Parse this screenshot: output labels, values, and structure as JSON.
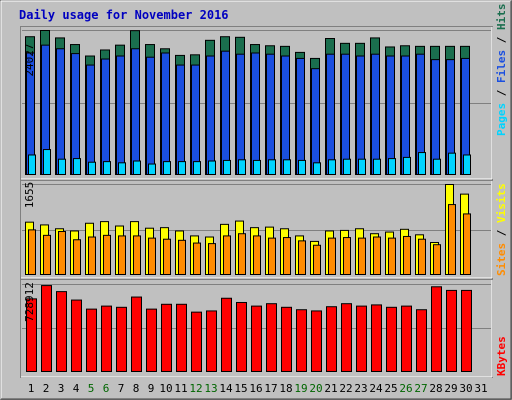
{
  "title": "Daily usage for November 2016",
  "colors": {
    "background": "#c0c0c0",
    "title": "#0000c0",
    "hits": "#1a6e4e",
    "files": "#1a4fe0",
    "pages": "#00d4ff",
    "visits": "#ffff00",
    "sites": "#ff8c00",
    "kbytes": "#ff0000",
    "weekend_label": "#006600"
  },
  "chart_data": [
    {
      "type": "bar",
      "panel": "hits-files-pages",
      "max_label": "24027",
      "ylim": [
        0,
        24027
      ],
      "legend": [
        {
          "label": "Pages",
          "color": "#00d4ff"
        },
        {
          "label": "Files",
          "color": "#1a4fe0"
        },
        {
          "label": "Hits",
          "color": "#1a6e4e"
        }
      ],
      "legend_separator": "/",
      "categories": [
        "1",
        "2",
        "3",
        "4",
        "5",
        "6",
        "7",
        "8",
        "9",
        "10",
        "11",
        "12",
        "13",
        "14",
        "15",
        "16",
        "17",
        "18",
        "19",
        "20",
        "21",
        "22",
        "23",
        "24",
        "25",
        "26",
        "27",
        "28",
        "29",
        "30",
        "31"
      ],
      "series": [
        {
          "name": "Hits",
          "values": [
            23000,
            24027,
            22800,
            21700,
            19800,
            20800,
            21600,
            24000,
            21700,
            21000,
            19900,
            20000,
            22400,
            23000,
            22900,
            21700,
            21500,
            21400,
            20400,
            19400,
            22700,
            21900,
            21900,
            22800,
            21300,
            21500,
            21400,
            21400,
            21400,
            21400,
            0
          ]
        },
        {
          "name": "Files",
          "values": [
            20300,
            21600,
            21000,
            20200,
            18300,
            19300,
            19800,
            21000,
            19600,
            20300,
            18300,
            18300,
            19800,
            20600,
            20100,
            20300,
            20100,
            19800,
            19400,
            17700,
            20100,
            20100,
            19800,
            20100,
            19800,
            19800,
            20100,
            19200,
            19200,
            19400,
            0
          ]
        },
        {
          "name": "Pages",
          "values": [
            3400,
            4300,
            2700,
            2800,
            2200,
            2300,
            2100,
            2400,
            1900,
            2300,
            2300,
            2300,
            2400,
            2500,
            2600,
            2500,
            2600,
            2600,
            2500,
            2100,
            2600,
            2700,
            2700,
            2700,
            2800,
            3000,
            3800,
            2700,
            3700,
            3400,
            0
          ]
        }
      ]
    },
    {
      "type": "bar",
      "panel": "visits-sites",
      "max_label": "1655",
      "ylim": [
        0,
        1655
      ],
      "legend": [
        {
          "label": "Sites",
          "color": "#ff8c00"
        },
        {
          "label": "Visits",
          "color": "#ffff00"
        }
      ],
      "legend_separator": "/",
      "categories": [
        "1",
        "2",
        "3",
        "4",
        "5",
        "6",
        "7",
        "8",
        "9",
        "10",
        "11",
        "12",
        "13",
        "14",
        "15",
        "16",
        "17",
        "18",
        "19",
        "20",
        "21",
        "22",
        "23",
        "24",
        "25",
        "26",
        "27",
        "28",
        "29",
        "30",
        "31"
      ],
      "series": [
        {
          "name": "Visits",
          "values": [
            970,
            920,
            850,
            810,
            950,
            980,
            900,
            980,
            860,
            870,
            810,
            720,
            700,
            930,
            990,
            870,
            880,
            850,
            720,
            620,
            810,
            820,
            850,
            760,
            790,
            840,
            740,
            600,
            1655,
            1480,
            0
          ]
        },
        {
          "name": "Sites",
          "values": [
            830,
            730,
            800,
            650,
            700,
            730,
            720,
            720,
            680,
            660,
            640,
            590,
            580,
            720,
            760,
            720,
            680,
            690,
            630,
            550,
            680,
            690,
            680,
            700,
            680,
            710,
            660,
            560,
            1290,
            1120,
            0
          ]
        }
      ]
    },
    {
      "type": "bar",
      "panel": "kbytes",
      "max_label": "728912",
      "ylim": [
        0,
        728912
      ],
      "legend": [
        {
          "label": "KBytes",
          "color": "#ff0000"
        }
      ],
      "categories": [
        "1",
        "2",
        "3",
        "4",
        "5",
        "6",
        "7",
        "8",
        "9",
        "10",
        "11",
        "12",
        "13",
        "14",
        "15",
        "16",
        "17",
        "18",
        "19",
        "20",
        "21",
        "22",
        "23",
        "24",
        "25",
        "26",
        "27",
        "28",
        "29",
        "30",
        "31"
      ],
      "series": [
        {
          "name": "KBytes",
          "values": [
            610000,
            720000,
            670000,
            600000,
            525000,
            550000,
            540000,
            625000,
            525000,
            565000,
            565000,
            500000,
            510000,
            615000,
            580000,
            550000,
            570000,
            540000,
            520000,
            510000,
            545000,
            570000,
            550000,
            560000,
            540000,
            550000,
            520000,
            710000,
            680000,
            680000,
            0
          ]
        }
      ]
    }
  ],
  "x_axis": {
    "labels": [
      "1",
      "2",
      "3",
      "4",
      "5",
      "6",
      "7",
      "8",
      "9",
      "10",
      "11",
      "12",
      "13",
      "14",
      "15",
      "16",
      "17",
      "18",
      "19",
      "20",
      "21",
      "22",
      "23",
      "24",
      "25",
      "26",
      "27",
      "28",
      "29",
      "30",
      "31"
    ],
    "weekend_days": [
      "5",
      "6",
      "12",
      "13",
      "19",
      "20",
      "26",
      "27"
    ]
  }
}
